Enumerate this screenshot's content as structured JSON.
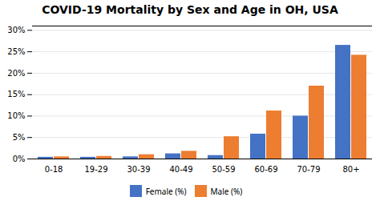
{
  "chart_data": {
    "type": "bar",
    "title": "COVID-19 Mortality by Sex and Age in OH, USA",
    "categories": [
      "0-18",
      "19-29",
      "30-39",
      "40-49",
      "50-59",
      "60-69",
      "70-79",
      "80+"
    ],
    "series": [
      {
        "name": "Female (%)",
        "color": "#4472C4",
        "values": [
          0.4,
          0.4,
          0.5,
          1.2,
          0.8,
          5.8,
          10.0,
          26.5
        ]
      },
      {
        "name": "Male (%)",
        "color": "#ED7D31",
        "values": [
          0.5,
          0.6,
          1.0,
          1.8,
          5.2,
          11.2,
          17.0,
          24.2
        ]
      }
    ],
    "ylim": [
      0,
      31
    ],
    "yticks": [
      {
        "value": 0,
        "label": "0%"
      },
      {
        "value": 5,
        "label": "5%"
      },
      {
        "value": 10,
        "label": "10%"
      },
      {
        "value": 15,
        "label": "15%"
      },
      {
        "value": 20,
        "label": "20%"
      },
      {
        "value": 25,
        "label": "25%"
      },
      {
        "value": 30,
        "label": "30%"
      }
    ],
    "grid": true,
    "legend": "bottom"
  }
}
